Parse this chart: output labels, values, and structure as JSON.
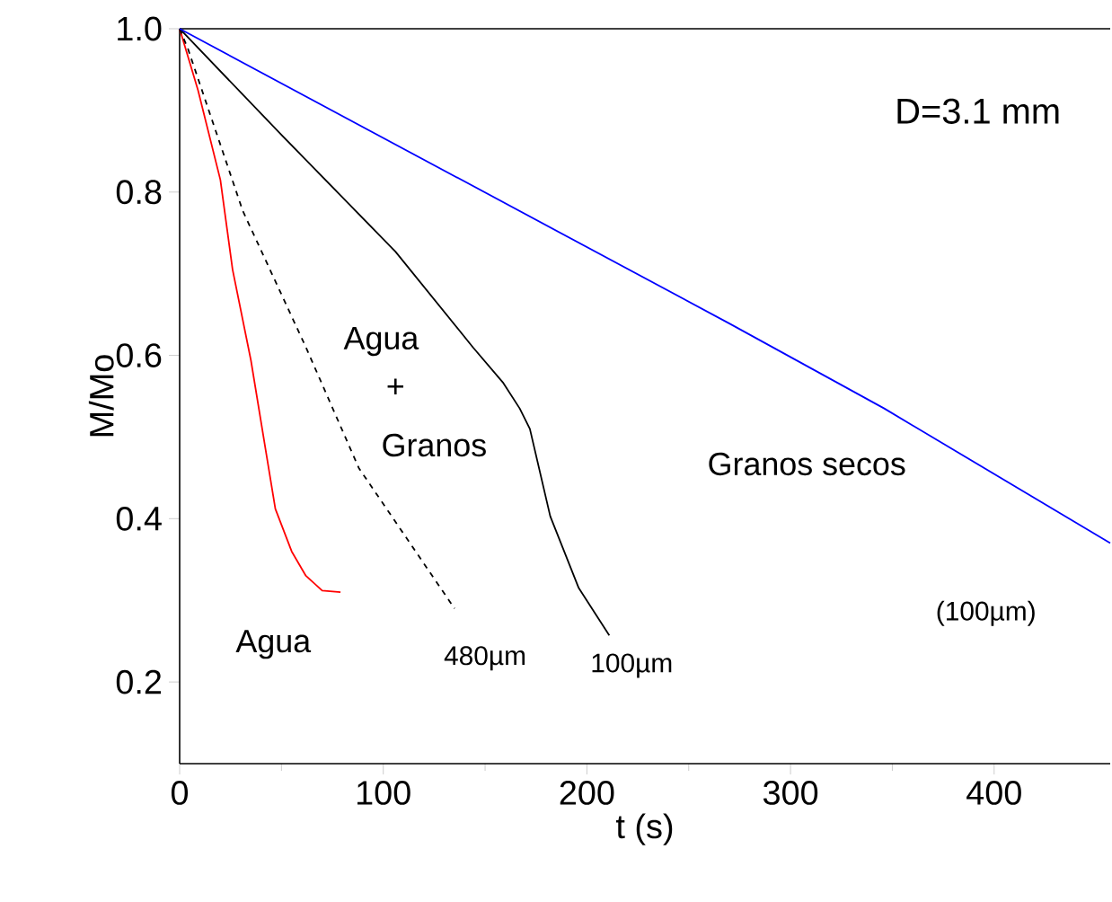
{
  "chart_data": {
    "type": "line",
    "xlabel": "t (s)",
    "ylabel": "M/Mo",
    "xlim": [
      0,
      457
    ],
    "ylim": [
      0.1,
      1.0
    ],
    "xticks": [
      0,
      100,
      200,
      300,
      400
    ],
    "yticks": [
      0.2,
      0.4,
      0.6,
      0.8,
      {
        "value": 1.0,
        "label": "1.0"
      }
    ],
    "grid": false,
    "legend": false,
    "marker": "none",
    "series": [
      {
        "name": "Agua",
        "color": "#ff0000",
        "line_style": "solid",
        "x": [
          0,
          9,
          20,
          26,
          35,
          47,
          55,
          62,
          70,
          79
        ],
        "values": [
          1.0,
          0.925,
          0.815,
          0.705,
          0.594,
          0.412,
          0.36,
          0.33,
          0.312,
          0.31
        ]
      },
      {
        "name": "480µm",
        "color": "#000000",
        "line_style": "dashed",
        "x": [
          0,
          4,
          31,
          62,
          88,
          135
        ],
        "values": [
          1.0,
          0.976,
          0.777,
          0.61,
          0.462,
          0.29
        ]
      },
      {
        "name": "100µm",
        "color": "#000000",
        "line_style": "solid",
        "x": [
          0,
          50,
          106,
          144,
          159,
          167,
          172,
          182,
          196,
          211
        ],
        "values": [
          1.0,
          0.87,
          0.727,
          0.61,
          0.566,
          0.535,
          0.51,
          0.403,
          0.315,
          0.257
        ]
      },
      {
        "name": "Granos secos",
        "color": "#0000ff",
        "line_style": "solid",
        "x": [
          0,
          270,
          346,
          457
        ],
        "values": [
          1.0,
          0.639,
          0.535,
          0.37
        ]
      }
    ],
    "annotations": [
      "D=3.1 mm",
      "Agua",
      "+",
      "Granos",
      "(100µm)"
    ]
  }
}
